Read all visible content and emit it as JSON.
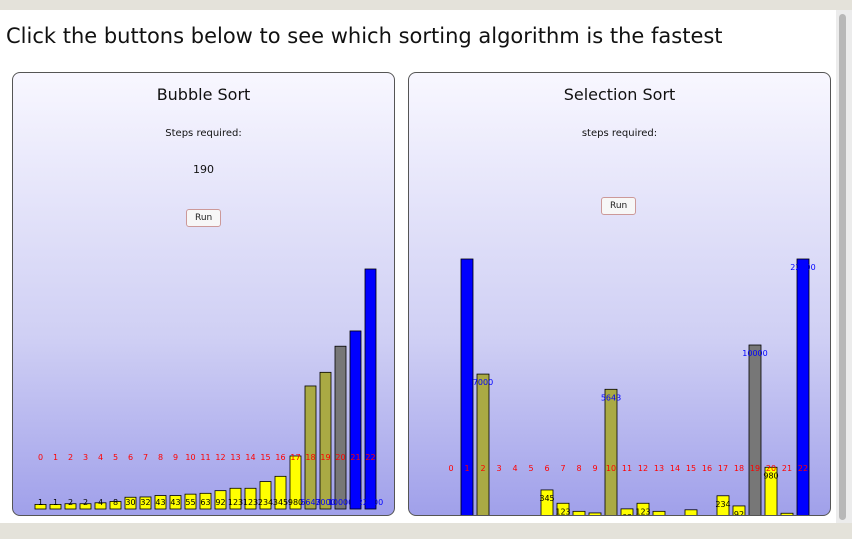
{
  "heading": "Click the buttons below to see which sorting algorithm is the fastest",
  "colors": {
    "default": "#ffff00",
    "sorted": "#0000ff",
    "compare": "#aaaa44",
    "current": "#777777",
    "index_label": "#ff0000",
    "value_label": "#0000ff"
  },
  "panels": {
    "bubble": {
      "title": "Bubble Sort",
      "steps_label": "Steps required:",
      "steps_value": "190",
      "run_label": "Run"
    },
    "selection": {
      "title": "Selection Sort",
      "steps_label": "steps required:",
      "steps_value": "",
      "run_label": "Run"
    }
  },
  "chart_data": [
    {
      "type": "bar",
      "name": "bubble",
      "indices": [
        "0",
        "1",
        "2",
        "3",
        "4",
        "5",
        "6",
        "7",
        "8",
        "9",
        "10",
        "11",
        "12",
        "13",
        "14",
        "15",
        "16",
        "17",
        "18",
        "19",
        "20",
        "21",
        "22"
      ],
      "values": [
        1,
        1,
        2,
        2,
        4,
        8,
        30,
        32,
        43,
        43,
        55,
        63,
        92,
        123,
        123,
        234,
        345,
        980,
        5643,
        7000,
        10000,
        12000,
        22000
      ],
      "value_labels": [
        "1",
        "1",
        "2",
        "2",
        "4",
        "8",
        "30",
        "32",
        "43",
        "43",
        "55",
        "63",
        "92",
        "123",
        "123",
        "234",
        "345",
        "980",
        "5643",
        "7000",
        "10000",
        "",
        "22000"
      ],
      "states": [
        "default",
        "default",
        "default",
        "default",
        "default",
        "default",
        "default",
        "default",
        "default",
        "default",
        "default",
        "default",
        "default",
        "default",
        "default",
        "default",
        "default",
        "default",
        "compare",
        "compare",
        "current",
        "sorted",
        "sorted"
      ]
    },
    {
      "type": "bar",
      "name": "selection",
      "indices": [
        "0",
        "1",
        "2",
        "3",
        "4",
        "5",
        "6",
        "7",
        "8",
        "9",
        "10",
        "11",
        "12",
        "13",
        "14",
        "15",
        "16",
        "17",
        "18",
        "19",
        "20",
        "21",
        "22"
      ],
      "values": [
        1,
        22000,
        7000,
        4,
        2,
        8,
        345,
        123,
        43,
        32,
        5643,
        63,
        123,
        43,
        2,
        55,
        1,
        234,
        92,
        10000,
        980,
        30,
        22000
      ],
      "value_labels": [
        "1",
        "",
        "7000",
        "4",
        "2",
        "8",
        "345",
        "123",
        "43",
        "32",
        "5643",
        "63",
        "123",
        "43",
        "2",
        "55",
        "1",
        "234",
        "92",
        "10000",
        "980",
        "30",
        "22000"
      ],
      "states": [
        "sorted",
        "sorted",
        "compare",
        "default",
        "default",
        "default",
        "default",
        "default",
        "default",
        "default",
        "compare",
        "default",
        "default",
        "default",
        "default",
        "default",
        "default",
        "default",
        "default",
        "current",
        "default",
        "default",
        "sorted"
      ]
    }
  ]
}
